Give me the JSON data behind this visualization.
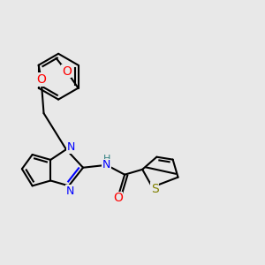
{
  "bg_color": "#e8e8e8",
  "bond_color": "#000000",
  "bond_width": 1.5,
  "atom_colors": {
    "O": "#ff0000",
    "N": "#0000ff",
    "S": "#808000",
    "H": "#2f8080",
    "C": "#000000"
  },
  "font_size": 9,
  "fig_size": [
    3.0,
    3.0
  ],
  "dpi": 100
}
